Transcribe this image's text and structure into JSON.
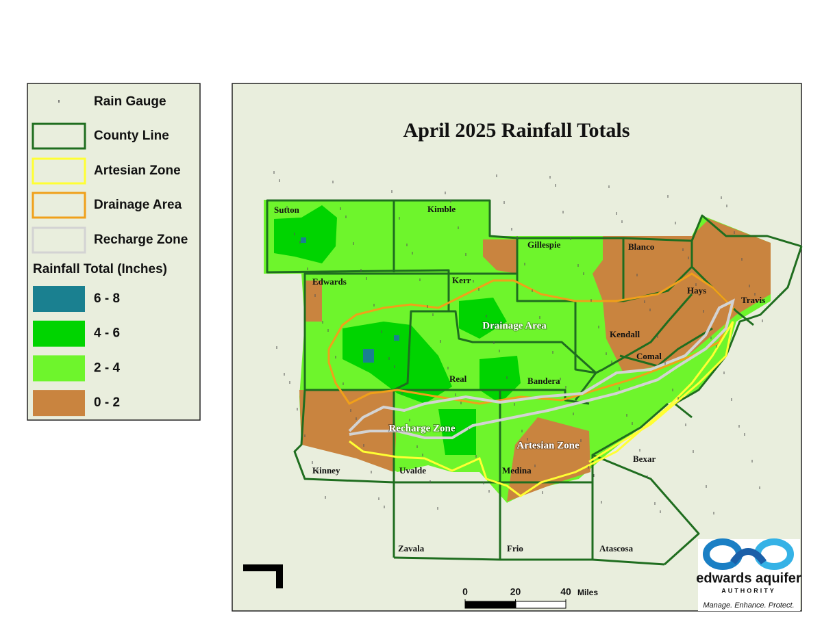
{
  "legend": {
    "items": [
      {
        "label": "Rain Gauge",
        "color": "#555555"
      },
      {
        "label": "County Line",
        "color": "#1f6d1f"
      },
      {
        "label": "Artesian Zone",
        "color": "#ffff33"
      },
      {
        "label": "Drainage Area",
        "color": "#f0a01a"
      },
      {
        "label": "Recharge Zone",
        "color": "#d3d3d3"
      }
    ],
    "rainfall_title": "Rainfall Total (Inches)",
    "classes": [
      {
        "label": "6 - 8",
        "color": "#1a8090"
      },
      {
        "label": "4 - 6",
        "color": "#00d400"
      },
      {
        "label": "2 - 4",
        "color": "#6ef52c"
      },
      {
        "label": "0 - 2",
        "color": "#c9843f"
      }
    ]
  },
  "map": {
    "title": "April 2025 Rainfall Totals",
    "counties": [
      "Sutton",
      "Kimble",
      "Gillespie",
      "Blanco",
      "Edwards",
      "Kerr",
      "Hays",
      "Travis",
      "Kendall",
      "Comal",
      "Real",
      "Bandera",
      "Bexar",
      "Kinney",
      "Uvalde",
      "Medina",
      "Zavala",
      "Frio",
      "Atascosa"
    ],
    "zones": [
      "Drainage Area",
      "Recharge Zone",
      "Artesian Zone"
    ],
    "scale": {
      "ticks": [
        0,
        20,
        40
      ],
      "unit": "Miles"
    }
  },
  "logo": {
    "name": "edwards aquifer",
    "subtitle": "AUTHORITY",
    "tagline": "Manage. Enhance. Protect."
  }
}
